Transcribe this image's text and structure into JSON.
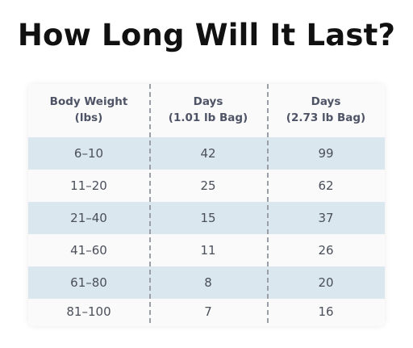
{
  "title": "How Long Will It Last?",
  "table": {
    "headers": [
      [
        "Body Weight",
        "(lbs)"
      ],
      [
        "Days",
        "(1.01 lb Bag)"
      ],
      [
        "Days",
        "(2.73 lb Bag)"
      ]
    ],
    "rows": [
      [
        "6–10",
        "42",
        "99"
      ],
      [
        "11–20",
        "25",
        "62"
      ],
      [
        "21–40",
        "15",
        "37"
      ],
      [
        "41–60",
        "11",
        "26"
      ],
      [
        "61–80",
        "8",
        "20"
      ],
      [
        "81–100",
        "7",
        "16"
      ]
    ],
    "shaded_row_color": "#dbe7ee",
    "text_color": "#4a4f5a",
    "header_color": "#4e5466"
  }
}
